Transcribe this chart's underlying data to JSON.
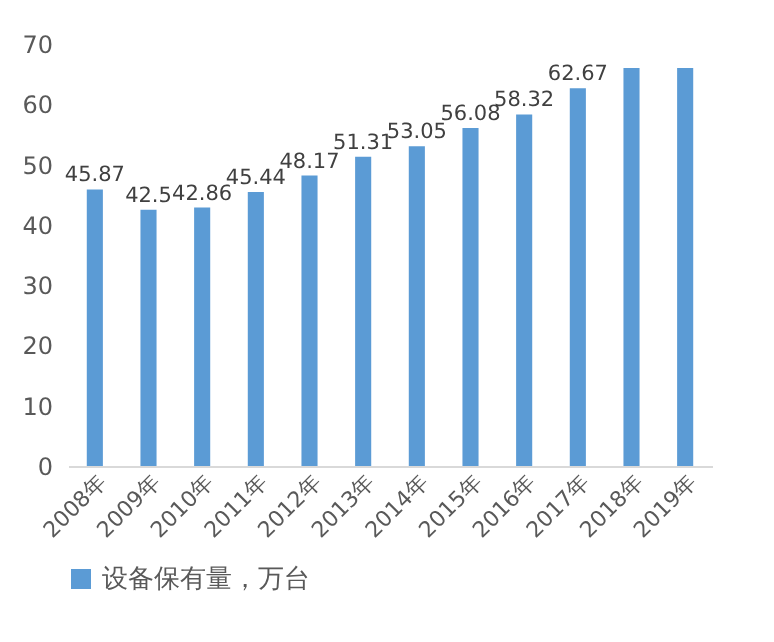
{
  "chart_data": {
    "type": "bar",
    "categories": [
      "2008年",
      "2009年",
      "2010年",
      "2011年",
      "2012年",
      "2013年",
      "2014年",
      "2015年",
      "2016年",
      "2017年",
      "2018年",
      "2019年"
    ],
    "series": [
      {
        "name": "设备保有量，万台",
        "color": "#5b9bd5",
        "values": [
          45.87,
          42.5,
          42.86,
          45.44,
          48.17,
          51.31,
          53.05,
          56.08,
          58.32,
          62.67,
          66,
          66
        ],
        "value_labels": [
          "45.87",
          "42.5",
          "42.86",
          "45.44",
          "48.17",
          "51.31",
          "53.05",
          "56.08",
          "58.32",
          "62.67",
          null,
          null
        ]
      }
    ],
    "ylim": [
      0,
      70
    ],
    "yticks": [
      0,
      10,
      20,
      30,
      40,
      50,
      60,
      70
    ],
    "grid": false,
    "legend": "bottom"
  }
}
